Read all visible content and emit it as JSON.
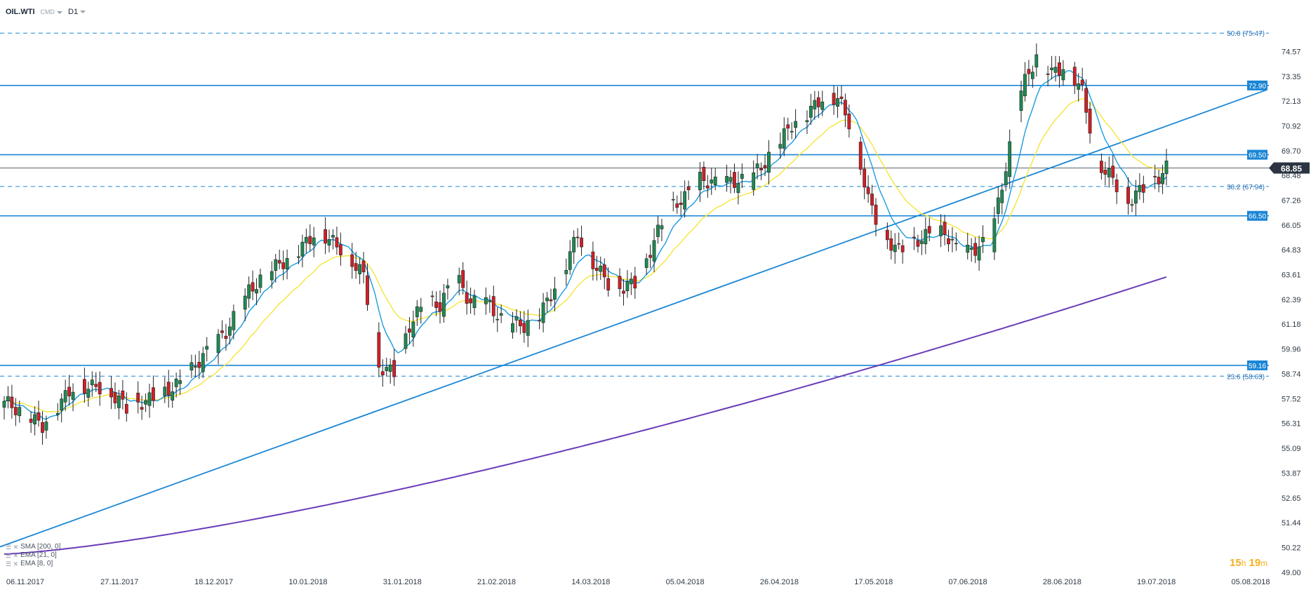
{
  "toolbar": {
    "symbol": "OIL.WTI",
    "source": "CMD",
    "timeframe": "D1"
  },
  "countdown": {
    "hours": "15",
    "h_unit": "h",
    "minutes": "19",
    "m_unit": "m"
  },
  "indicators": [
    {
      "label": "SMA [200, 0]",
      "color": "#6a3cb8"
    },
    {
      "label": "EMA [21, 0]",
      "color": "#f5e53a"
    },
    {
      "label": "EMA [8, 0]",
      "color": "#1a9be0"
    }
  ],
  "chart_data": {
    "type": "candlestick",
    "ylim": [
      49.0,
      76.2
    ],
    "y_ticks": [
      "74.57",
      "73.35",
      "72.13",
      "70.92",
      "69.70",
      "68.48",
      "67.26",
      "66.05",
      "64.83",
      "63.61",
      "62.39",
      "61.18",
      "59.96",
      "58.74",
      "57.52",
      "56.31",
      "55.09",
      "53.87",
      "52.65",
      "51.44",
      "50.22",
      "49.00"
    ],
    "x_labels": [
      "06.11.2017",
      "27.11.2017",
      "18.12.2017",
      "10.01.2018",
      "31.01.2018",
      "21.02.2018",
      "14.03.2018",
      "05.04.2018",
      "26.04.2018",
      "17.05.2018",
      "07.06.2018",
      "28.06.2018",
      "19.07.2018",
      "05.08.2018"
    ],
    "current_price": {
      "value": 68.85,
      "label": "68.85"
    },
    "horizontal_levels": [
      {
        "value": 72.9,
        "label": "72.90",
        "style": "solid",
        "color": "#1a86d6"
      },
      {
        "value": 69.5,
        "label": "69.50",
        "style": "solid",
        "color": "#1a86d6"
      },
      {
        "value": 66.5,
        "label": "66.50",
        "style": "solid",
        "color": "#1a86d6"
      },
      {
        "value": 59.16,
        "label": "59.16",
        "style": "solid",
        "color": "#1a86d6"
      }
    ],
    "fibonacci_levels": [
      {
        "value": 75.47,
        "label": "50.0 (75.47)"
      },
      {
        "value": 67.94,
        "label": "38.2 (67.94)"
      },
      {
        "value": 58.63,
        "label": "23.6 (58.63)"
      }
    ],
    "trendlines": [
      {
        "name": "rising-support",
        "from": [
          "06.11.2017",
          50.7
        ],
        "to": [
          "05.08.2018",
          72.4
        ],
        "color": "#1a86d6"
      }
    ],
    "colors": {
      "up": "#1e8a52",
      "down": "#d21f26",
      "ema8": "#1a9be0",
      "ema21": "#f5e53a",
      "sma200": "#6a3cb8",
      "accent": "#1a86d6"
    }
  }
}
